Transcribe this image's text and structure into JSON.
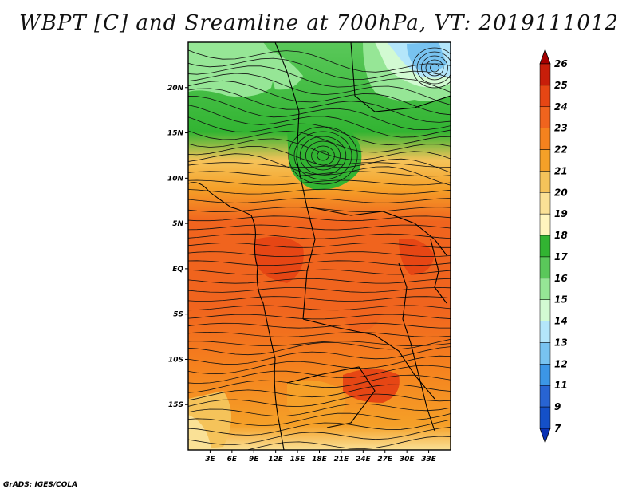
{
  "title": "WBPT [C] and Sreamline at 700hPa, VT: 2019111012",
  "credit": "GrADS: IGES/COLA",
  "map": {
    "lon_range": [
      0,
      36
    ],
    "lat_range": [
      -20,
      25
    ],
    "lon_ticks": [
      "3E",
      "6E",
      "9E",
      "12E",
      "15E",
      "18E",
      "21E",
      "24E",
      "27E",
      "30E",
      "33E"
    ],
    "lat_ticks": [
      "20N",
      "15N",
      "10N",
      "5N",
      "EQ",
      "5S",
      "10S",
      "15S"
    ]
  },
  "colorbar": {
    "levels": [
      "26",
      "25",
      "24",
      "23",
      "22",
      "21",
      "20",
      "19",
      "18",
      "17",
      "16",
      "15",
      "14",
      "13",
      "12",
      "11",
      "9",
      "7"
    ],
    "colors": [
      "#a50000",
      "#c81e0a",
      "#e64614",
      "#f0641e",
      "#f5821e",
      "#f5a028",
      "#f5c35a",
      "#fae196",
      "#fff5be",
      "#32b432",
      "#5ac85a",
      "#96e696",
      "#d2fad2",
      "#b4e6fa",
      "#78c3f0",
      "#3c96e6",
      "#2864d2",
      "#1450c8",
      "#0a32b4"
    ]
  }
}
